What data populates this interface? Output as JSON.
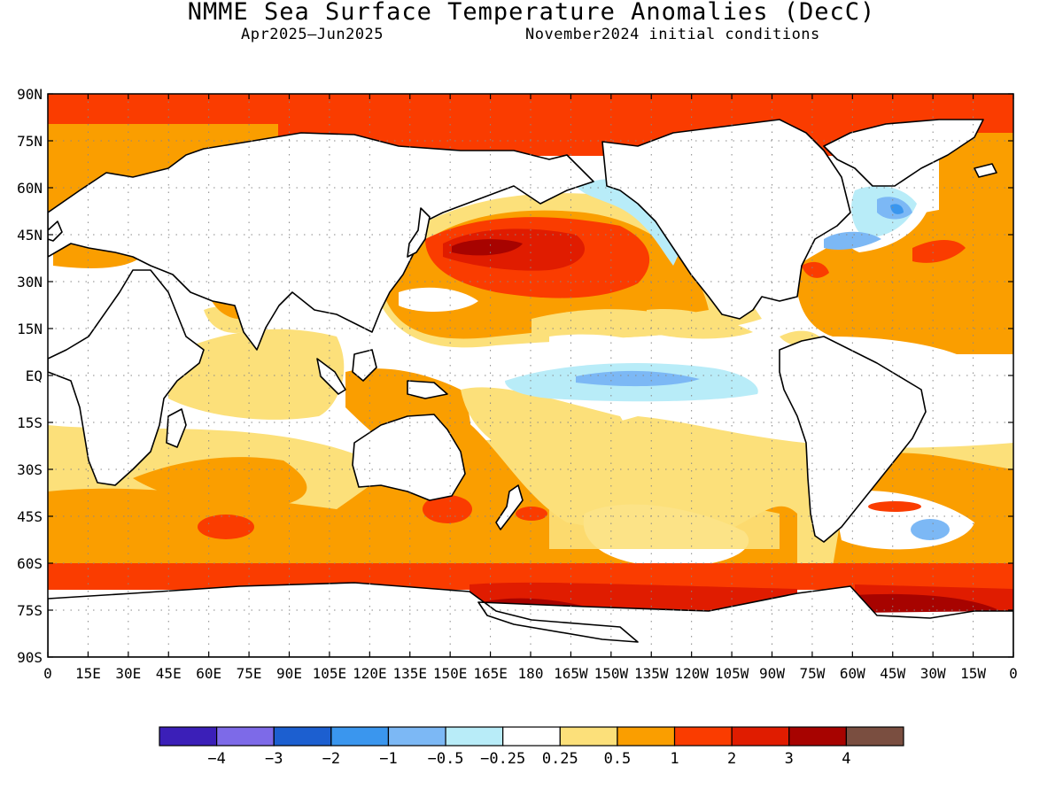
{
  "header": {
    "title": "NMME Sea Surface Temperature Anomalies (DecC)",
    "period": "Apr2025–Jun2025",
    "init": "November2024 initial conditions"
  },
  "map": {
    "lon_range": [
      0,
      360
    ],
    "lat_range": [
      -90,
      90
    ],
    "grid": "dotted",
    "lat_labels": [
      "90N",
      "75N",
      "60N",
      "45N",
      "30N",
      "15N",
      "EQ",
      "15S",
      "30S",
      "45S",
      "60S",
      "75S",
      "90S"
    ],
    "lon_labels": [
      "0",
      "15E",
      "30E",
      "45E",
      "60E",
      "75E",
      "90E",
      "105E",
      "120E",
      "135E",
      "150E",
      "165E",
      "180",
      "165W",
      "150W",
      "135W",
      "120W",
      "105W",
      "90W",
      "75W",
      "60W",
      "45W",
      "30W",
      "15W",
      "0"
    ]
  },
  "colorbar": {
    "colors": [
      "#3b1fb8",
      "#7d6ae8",
      "#1c5fd0",
      "#3a96ee",
      "#7cb8f5",
      "#b8ecf8",
      "#ffffff",
      "#fce07a",
      "#fa9e00",
      "#fa3c00",
      "#e01c00",
      "#a70300",
      "#7a4e40"
    ],
    "labels": [
      "−4",
      "−3",
      "−2",
      "−1",
      "−0.5",
      "−0.25",
      "0.25",
      "0.5",
      "1",
      "2",
      "3",
      "4"
    ]
  }
}
